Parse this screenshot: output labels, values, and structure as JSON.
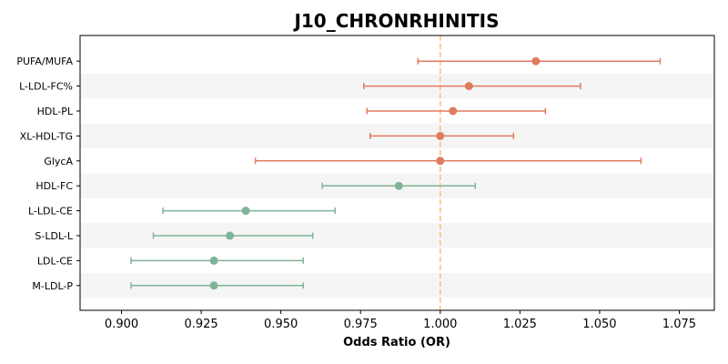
{
  "chart_data": {
    "type": "forest",
    "title": "J10_CHRONRHINITIS",
    "xlabel": "Odds Ratio (OR)",
    "xlim": [
      0.887,
      1.086
    ],
    "xticks": [
      0.9,
      0.925,
      0.95,
      0.975,
      1.0,
      1.025,
      1.05,
      1.075
    ],
    "xtick_labels": [
      "0.900",
      "0.925",
      "0.950",
      "0.975",
      "1.000",
      "1.025",
      "1.050",
      "1.075"
    ],
    "reference_line": 1.0,
    "reference_color": "#f5c77e",
    "grid": false,
    "row_banding": true,
    "colors": {
      "positive": "#e07b60",
      "negative": "#7fb397",
      "band": "#f5f5f5"
    },
    "rows": [
      {
        "label": "PUFA/MUFA",
        "or": 1.03,
        "lower": 0.993,
        "upper": 1.069,
        "group": "positive"
      },
      {
        "label": "L-LDL-FC%",
        "or": 1.009,
        "lower": 0.976,
        "upper": 1.044,
        "group": "positive"
      },
      {
        "label": "HDL-PL",
        "or": 1.004,
        "lower": 0.977,
        "upper": 1.033,
        "group": "positive"
      },
      {
        "label": "XL-HDL-TG",
        "or": 1.0,
        "lower": 0.978,
        "upper": 1.023,
        "group": "positive"
      },
      {
        "label": "GlycA",
        "or": 1.0,
        "lower": 0.942,
        "upper": 1.063,
        "group": "positive"
      },
      {
        "label": "HDL-FC",
        "or": 0.987,
        "lower": 0.963,
        "upper": 1.011,
        "group": "negative"
      },
      {
        "label": "L-LDL-CE",
        "or": 0.939,
        "lower": 0.913,
        "upper": 0.967,
        "group": "negative"
      },
      {
        "label": "S-LDL-L",
        "or": 0.934,
        "lower": 0.91,
        "upper": 0.96,
        "group": "negative"
      },
      {
        "label": "LDL-CE",
        "or": 0.929,
        "lower": 0.903,
        "upper": 0.957,
        "group": "negative"
      },
      {
        "label": "M-LDL-P",
        "or": 0.929,
        "lower": 0.903,
        "upper": 0.957,
        "group": "negative"
      }
    ]
  }
}
